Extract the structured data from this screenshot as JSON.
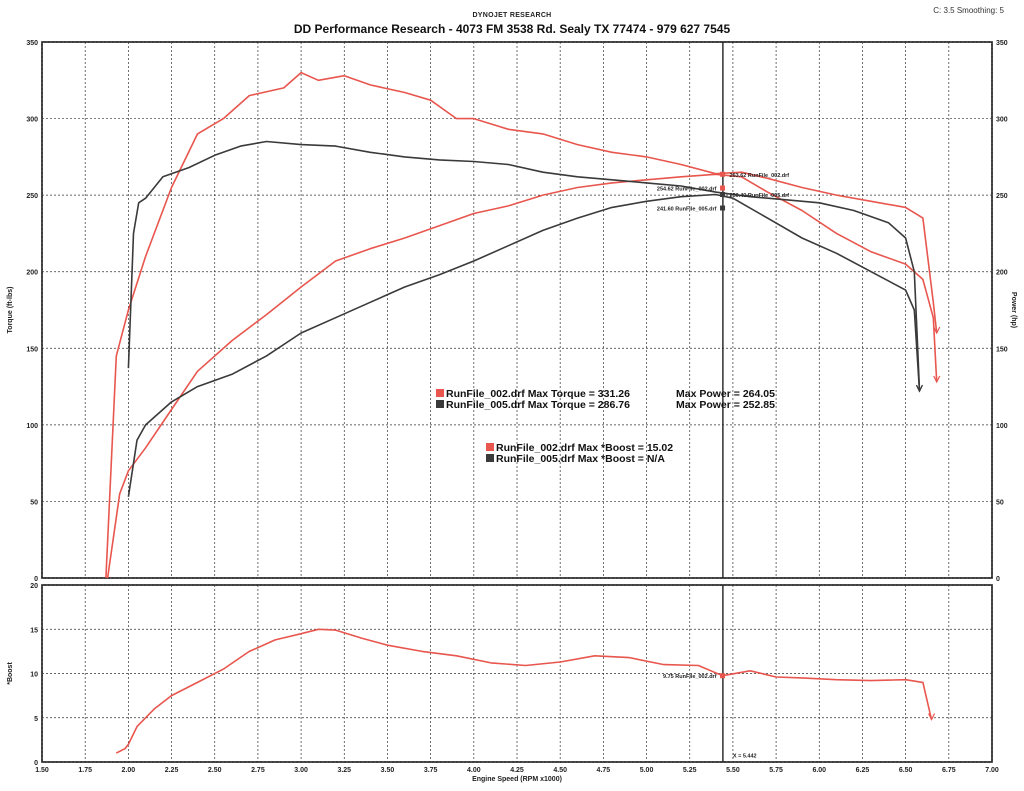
{
  "header": {
    "company": "DYNOJET RESEARCH",
    "title": "DD Performance Research - 4073 FM 3538 Rd. Sealy TX 77474 - 979 627 7545",
    "corner_text": "C: 3.5 Smoothing: 5"
  },
  "colors": {
    "run002": "#e8564e",
    "run005": "#3a3a3a",
    "grid": "#333333"
  },
  "chart_data": [
    {
      "type": "line",
      "title": "",
      "xlabel": "",
      "ylabel": "Torque (ft-lbs)",
      "y2label": "Power (hp)",
      "xlim": [
        1.5,
        7.0
      ],
      "ylim": [
        0,
        350
      ],
      "y2lim": [
        0,
        350
      ],
      "x_ticks": [
        1.5,
        1.75,
        2.0,
        2.25,
        2.5,
        2.75,
        3.0,
        3.25,
        3.5,
        3.75,
        4.0,
        4.25,
        4.5,
        4.75,
        5.0,
        5.25,
        5.5,
        5.75,
        6.0,
        6.25,
        6.5,
        6.75,
        7.0
      ],
      "y_ticks": [
        0,
        50,
        100,
        150,
        200,
        250,
        300,
        350
      ],
      "grid": true,
      "series": [
        {
          "name": "RunFile_002.drf",
          "measure": "Torque",
          "x": [
            1.87,
            1.93,
            2.0,
            2.1,
            2.25,
            2.4,
            2.55,
            2.7,
            2.9,
            3.0,
            3.1,
            3.25,
            3.4,
            3.6,
            3.75,
            3.9,
            4.0,
            4.2,
            4.4,
            4.6,
            4.8,
            5.0,
            5.2,
            5.4,
            5.55,
            5.7,
            5.9,
            6.1,
            6.3,
            6.5,
            6.6,
            6.66,
            6.68
          ],
          "y": [
            0,
            145,
            175,
            210,
            255,
            290,
            300,
            315,
            320,
            330,
            325,
            328,
            322,
            317,
            312,
            300,
            300,
            293,
            290,
            283,
            278,
            275,
            270,
            264,
            265,
            261,
            255,
            250,
            246,
            242,
            235,
            180,
            160
          ]
        },
        {
          "name": "RunFile_002.drf",
          "measure": "Power",
          "x": [
            1.88,
            1.95,
            2.0,
            2.1,
            2.25,
            2.4,
            2.6,
            2.8,
            3.0,
            3.2,
            3.4,
            3.6,
            3.8,
            4.0,
            4.2,
            4.4,
            4.6,
            4.8,
            5.0,
            5.2,
            5.4,
            5.55,
            5.7,
            5.9,
            6.1,
            6.3,
            6.5,
            6.6,
            6.66,
            6.68
          ],
          "y": [
            0,
            55,
            70,
            85,
            110,
            135,
            155,
            172,
            190,
            207,
            215,
            222,
            230,
            238,
            243,
            250,
            255,
            258,
            260,
            262,
            263.6,
            262,
            252,
            240,
            225,
            213,
            205,
            195,
            170,
            128
          ]
        },
        {
          "name": "RunFile_005.drf",
          "measure": "Torque",
          "x": [
            2.0,
            2.03,
            2.06,
            2.1,
            2.2,
            2.35,
            2.5,
            2.65,
            2.8,
            3.0,
            3.2,
            3.4,
            3.6,
            3.8,
            4.0,
            4.2,
            4.4,
            4.6,
            4.8,
            5.0,
            5.2,
            5.4,
            5.6,
            5.8,
            6.0,
            6.2,
            6.4,
            6.5,
            6.55,
            6.57,
            6.58
          ],
          "y": [
            137,
            225,
            245,
            248,
            262,
            268,
            276,
            282,
            285,
            283,
            282,
            278,
            275,
            273,
            272,
            270,
            265,
            262,
            260,
            258,
            256,
            252,
            249,
            247,
            245,
            240,
            232,
            222,
            200,
            150,
            122
          ]
        },
        {
          "name": "RunFile_005.drf",
          "measure": "Power",
          "x": [
            2.0,
            2.05,
            2.1,
            2.25,
            2.4,
            2.6,
            2.8,
            3.0,
            3.2,
            3.4,
            3.6,
            3.8,
            4.0,
            4.2,
            4.4,
            4.6,
            4.8,
            5.0,
            5.2,
            5.4,
            5.5,
            5.7,
            5.9,
            6.1,
            6.3,
            6.5,
            6.55,
            6.58
          ],
          "y": [
            53,
            90,
            100,
            115,
            125,
            133,
            145,
            160,
            170,
            180,
            190,
            198,
            207,
            217,
            227,
            235,
            242,
            246,
            249,
            250.4,
            248,
            235,
            222,
            212,
            200,
            188,
            175,
            122
          ]
        }
      ],
      "cursor_x": 5.442,
      "annotations": [
        {
          "text": "263.62 RunFile_002.drf",
          "x": 5.44,
          "y": 263.62
        },
        {
          "text": "254.62 RunFile_002.drf",
          "x": 5.44,
          "y": 254.62
        },
        {
          "text": "250.40 RunFile_005.drf",
          "x": 5.44,
          "y": 250.4
        },
        {
          "text": "241.60 RunFile_005.drf",
          "x": 5.44,
          "y": 241.6
        }
      ],
      "legend": [
        {
          "series": "RunFile_002.drf",
          "line": "RunFile_002.drf Max Torque = 331.26",
          "power": "Max Power = 264.05"
        },
        {
          "series": "RunFile_005.drf",
          "line": "RunFile_005.drf Max Torque = 286.76",
          "power": "Max Power = 252.85"
        }
      ],
      "boost_legend": [
        {
          "series": "RunFile_002.drf",
          "line": "RunFile_002.drf Max *Boost = 15.02"
        },
        {
          "series": "RunFile_005.drf",
          "line": "RunFile_005.drf Max *Boost = N/A"
        }
      ]
    },
    {
      "type": "line",
      "title": "",
      "xlabel": "Engine Speed (RPM x1000)",
      "ylabel": "*Boost",
      "xlim": [
        1.5,
        7.0
      ],
      "ylim": [
        0,
        20
      ],
      "x_ticks": [
        1.5,
        1.75,
        2.0,
        2.25,
        2.5,
        2.75,
        3.0,
        3.25,
        3.5,
        3.75,
        4.0,
        4.25,
        4.5,
        4.75,
        5.0,
        5.25,
        5.5,
        5.75,
        6.0,
        6.25,
        6.5,
        6.75,
        7.0
      ],
      "y_ticks": [
        0,
        5,
        10,
        15,
        20
      ],
      "grid": true,
      "series": [
        {
          "name": "RunFile_002.drf",
          "measure": "*Boost",
          "x": [
            1.93,
            1.98,
            2.0,
            2.05,
            2.15,
            2.25,
            2.4,
            2.55,
            2.7,
            2.85,
            3.0,
            3.1,
            3.2,
            3.35,
            3.5,
            3.7,
            3.9,
            4.1,
            4.3,
            4.5,
            4.7,
            4.9,
            5.1,
            5.3,
            5.44,
            5.6,
            5.75,
            5.9,
            6.1,
            6.3,
            6.5,
            6.6,
            6.65
          ],
          "y": [
            1.0,
            1.5,
            2.0,
            4.0,
            6.0,
            7.5,
            9.0,
            10.5,
            12.5,
            13.8,
            14.5,
            15.0,
            14.9,
            14.0,
            13.2,
            12.5,
            12.0,
            11.2,
            10.9,
            11.3,
            12.0,
            11.8,
            11.0,
            10.9,
            9.75,
            10.3,
            9.6,
            9.5,
            9.3,
            9.2,
            9.3,
            9.0,
            4.8
          ]
        }
      ],
      "cursor_x": 5.442,
      "annotations": [
        {
          "text": "9.75 RunFile_002.drf",
          "x": 5.44,
          "y": 9.75
        },
        {
          "text": "X = 5.442",
          "x": 5.442,
          "y": 0.8
        }
      ]
    }
  ]
}
